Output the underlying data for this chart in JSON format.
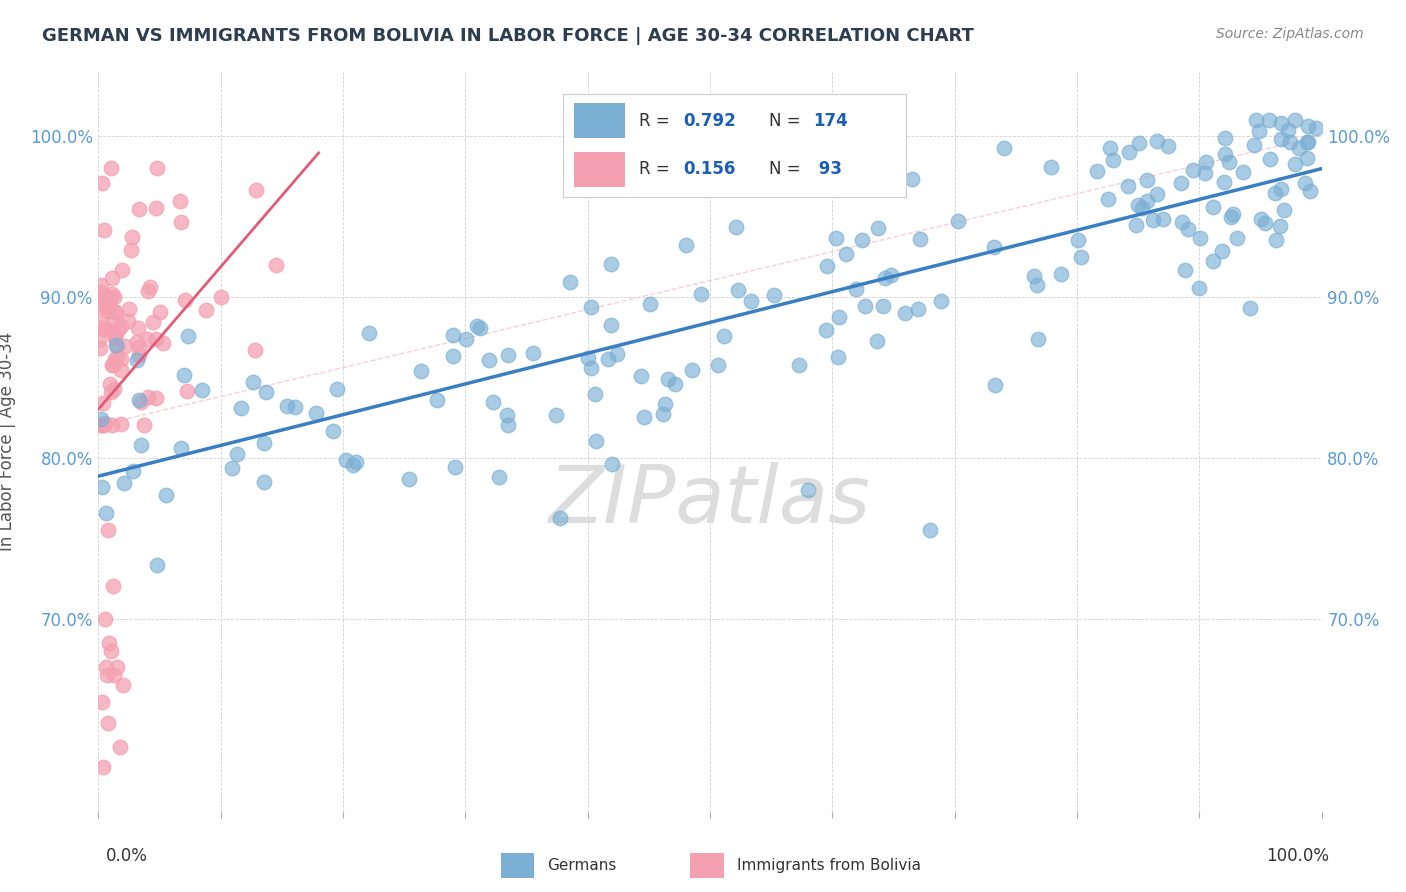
{
  "title": "GERMAN VS IMMIGRANTS FROM BOLIVIA IN LABOR FORCE | AGE 30-34 CORRELATION CHART",
  "source": "Source: ZipAtlas.com",
  "ylabel": "In Labor Force | Age 30-34",
  "xlim": [
    0.0,
    1.0
  ],
  "ylim": [
    0.58,
    1.04
  ],
  "german_color": "#7bafd4",
  "bolivia_color": "#f4a0b0",
  "german_line_color": "#3a7fc1",
  "bolivia_line_color": "#e05c7a",
  "german_R": 0.792,
  "german_N": 174,
  "bolivia_R": 0.156,
  "bolivia_N": 93,
  "watermark": "ZIPatlas",
  "title_color": "#2c3e50",
  "source_color": "#888888",
  "axis_label_color": "#555555",
  "tick_label_color": "#5b9bd5",
  "legend_R_N_color": "#1a5eb8",
  "legend_R_label_color": "#333333",
  "ytick_vals": [
    0.7,
    0.8,
    0.9,
    1.0
  ],
  "ytick_labels": [
    "70.0%",
    "80.0%",
    "90.0%",
    "100.0%"
  ]
}
